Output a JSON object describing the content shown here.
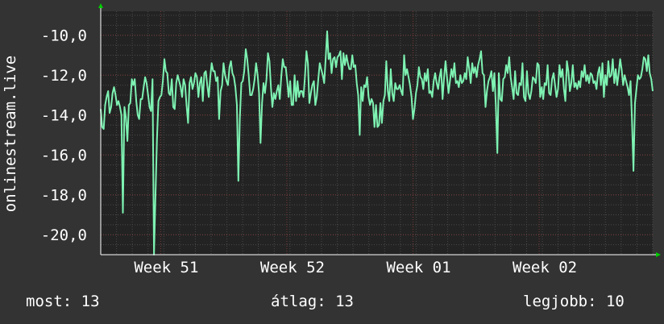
{
  "chart_data": {
    "type": "line",
    "ylabel": "onlinestream.live",
    "ylim": [
      -21.0,
      -8.8
    ],
    "yticks": [
      "-10,0",
      "-12,0",
      "-14,0",
      "-16,0",
      "-18,0",
      "-20,0"
    ],
    "ytick_values": [
      -10,
      -12,
      -14,
      -16,
      -18,
      -20
    ],
    "xlim": [
      0,
      350
    ],
    "xticks": [
      "Week 51",
      "Week 52",
      "Week 01",
      "Week 02"
    ],
    "xtick_values": [
      38,
      118,
      198,
      278
    ],
    "grid": true,
    "series": [
      {
        "color": "#7ef2b2",
        "values": [
          -13.7,
          -14.6,
          -14.7,
          -13.5,
          -13.1,
          -12.8,
          -13.9,
          -13.6,
          -12.9,
          -12.6,
          -13.0,
          -13.5,
          -13.3,
          -13.6,
          -14.0,
          -18.9,
          -13.6,
          -14.1,
          -15.3,
          -13.5,
          -13.4,
          -12.2,
          -12.5,
          -12.2,
          -13.3,
          -14.0,
          -14.2,
          -13.2,
          -13.2,
          -12.6,
          -12.1,
          -12.4,
          -13.0,
          -13.6,
          -13.8,
          -12.2,
          -21.0,
          -18.1,
          -15.2,
          -13.3,
          -13.1,
          -13.0,
          -12.3,
          -11.2,
          -11.8,
          -11.9,
          -12.9,
          -13.0,
          -12.2,
          -13.6,
          -13.7,
          -12.4,
          -12.0,
          -12.3,
          -12.6,
          -13.1,
          -12.2,
          -12.5,
          -13.5,
          -14.4,
          -12.4,
          -12.1,
          -12.7,
          -12.4,
          -11.9,
          -12.1,
          -13.1,
          -12.4,
          -12.1,
          -13.3,
          -11.9,
          -11.8,
          -12.5,
          -13.1,
          -12.1,
          -11.4,
          -11.8,
          -11.8,
          -12.3,
          -12.1,
          -14.2,
          -12.8,
          -12.5,
          -11.4,
          -12.0,
          -12.3,
          -12.5,
          -11.6,
          -11.3,
          -11.9,
          -12.1,
          -12.6,
          -13.5,
          -17.3,
          -14.2,
          -12.4,
          -12.3,
          -11.8,
          -10.7,
          -11.2,
          -12.0,
          -13.0,
          -13.0,
          -12.7,
          -12.2,
          -11.4,
          -12.0,
          -12.9,
          -15.4,
          -13.4,
          -12.4,
          -12.9,
          -12.2,
          -10.9,
          -11.3,
          -12.6,
          -13.6,
          -12.9,
          -13.2,
          -12.8,
          -12.5,
          -13.2,
          -12.1,
          -11.2,
          -11.6,
          -11.6,
          -12.3,
          -13.1,
          -12.3,
          -13.5,
          -13.5,
          -12.0,
          -13.3,
          -12.3,
          -13.1,
          -12.8,
          -12.8,
          -13.1,
          -12.1,
          -10.8,
          -11.4,
          -13.4,
          -12.9,
          -12.5,
          -12.3,
          -13.5,
          -13.1,
          -12.2,
          -11.4,
          -11.7,
          -12.0,
          -12.4,
          -11.2,
          -9.8,
          -11.2,
          -10.9,
          -11.9,
          -11.2,
          -11.1,
          -11.6,
          -11.1,
          -11.0,
          -10.8,
          -12.2,
          -10.9,
          -11.5,
          -11.0,
          -11.4,
          -11.7,
          -11.7,
          -11.0,
          -11.6,
          -11.5,
          -12.4,
          -13.0,
          -15.0,
          -12.6,
          -13.3,
          -12.5,
          -12.6,
          -12.1,
          -13.1,
          -13.5,
          -13.2,
          -13.4,
          -14.6,
          -13.5,
          -14.6,
          -14.5,
          -13.4,
          -14.4,
          -13.3,
          -13.0,
          -11.3,
          -12.8,
          -13.3,
          -11.7,
          -12.9,
          -13.3,
          -12.4,
          -12.7,
          -12.7,
          -12.5,
          -12.8,
          -13.0,
          -11.0,
          -12.0,
          -11.7,
          -12.1,
          -12.5,
          -13.1,
          -14.2,
          -13.7,
          -12.9,
          -12.5,
          -11.6,
          -12.1,
          -12.2,
          -12.7,
          -11.9,
          -12.3,
          -11.7,
          -12.9,
          -12.8,
          -13.1,
          -12.3,
          -11.9,
          -12.4,
          -12.7,
          -12.1,
          -11.7,
          -13.2,
          -12.1,
          -11.3,
          -12.1,
          -12.9,
          -12.3,
          -11.7,
          -12.1,
          -11.4,
          -12.4,
          -12.3,
          -12.6,
          -12.0,
          -12.4,
          -12.3,
          -11.9,
          -12.2,
          -11.1,
          -11.7,
          -12.4,
          -11.4,
          -11.9,
          -11.6,
          -12.1,
          -11.5,
          -11.2,
          -10.8,
          -11.9,
          -12.0,
          -13.6,
          -12.8,
          -12.3,
          -12.1,
          -11.8,
          -12.8,
          -11.9,
          -13.5,
          -15.9,
          -11.9,
          -13.2,
          -13.3,
          -12.2,
          -12.1,
          -11.5,
          -11.9,
          -11.1,
          -12.1,
          -12.6,
          -13.2,
          -11.8,
          -12.9,
          -13.0,
          -12.4,
          -12.5,
          -11.4,
          -13.1,
          -13.3,
          -11.8,
          -12.9,
          -13.2,
          -12.8,
          -12.1,
          -12.2,
          -12.4,
          -11.4,
          -11.5,
          -13.1,
          -12.6,
          -13.2,
          -12.4,
          -12.5,
          -11.5,
          -12.9,
          -13.0,
          -12.2,
          -11.9,
          -12.5,
          -13.1,
          -12.7,
          -11.5,
          -12.1,
          -11.7,
          -12.7,
          -13.3,
          -11.3,
          -11.8,
          -12.8,
          -12.4,
          -11.5,
          -12.6,
          -12.4,
          -12.7,
          -12.3,
          -12.6,
          -11.8,
          -12.1,
          -11.5,
          -12.3,
          -12.0,
          -12.4,
          -11.9,
          -12.0,
          -12.4,
          -12.3,
          -12.7,
          -11.9,
          -11.6,
          -12.5,
          -11.4,
          -13.1,
          -12.0,
          -12.5,
          -11.3,
          -12.1,
          -12.0,
          -11.2,
          -12.4,
          -11.7,
          -12.5,
          -11.9,
          -11.2,
          -11.7,
          -12.5,
          -12.0,
          -12.3,
          -12.6,
          -13.0,
          -12.3,
          -14.3,
          -16.8,
          -13.4,
          -12.7,
          -12.0,
          -12.2,
          -12.1,
          -11.7,
          -11.1,
          -11.2,
          -11.8,
          -11.0,
          -11.9,
          -12.2,
          -12.8
        ]
      }
    ]
  },
  "stats": {
    "current": "most: 13",
    "average": "átlag: 13",
    "best": "legjobb: 10"
  }
}
